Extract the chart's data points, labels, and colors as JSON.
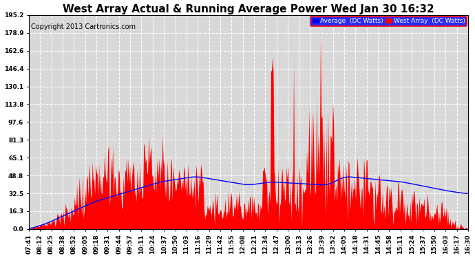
{
  "title": "West Array Actual & Running Average Power Wed Jan 30 16:32",
  "copyright": "Copyright 2013 Cartronics.com",
  "legend_labels": [
    "Average  (DC Watts)",
    "West Array  (DC Watts)"
  ],
  "yticks": [
    0.0,
    16.3,
    32.5,
    48.8,
    65.1,
    81.3,
    97.6,
    113.8,
    130.1,
    146.4,
    162.6,
    178.9,
    195.2
  ],
  "ymax": 195.2,
  "xtick_labels": [
    "07:41",
    "08:12",
    "08:25",
    "08:38",
    "08:52",
    "09:05",
    "09:18",
    "09:31",
    "09:44",
    "09:57",
    "10:11",
    "10:24",
    "10:37",
    "10:50",
    "11:03",
    "11:16",
    "11:29",
    "11:42",
    "11:55",
    "12:08",
    "12:21",
    "12:34",
    "12:47",
    "13:00",
    "13:13",
    "13:26",
    "13:39",
    "13:52",
    "14:05",
    "14:18",
    "14:31",
    "14:45",
    "14:58",
    "15:11",
    "15:24",
    "15:37",
    "15:50",
    "16:03",
    "16:17",
    "16:30"
  ],
  "bg_color": "#ffffff",
  "plot_bg_color": "#d8d8d8",
  "grid_color": "#ffffff",
  "title_fontsize": 11,
  "copyright_fontsize": 7,
  "tick_fontsize": 6.5,
  "n_points": 540
}
